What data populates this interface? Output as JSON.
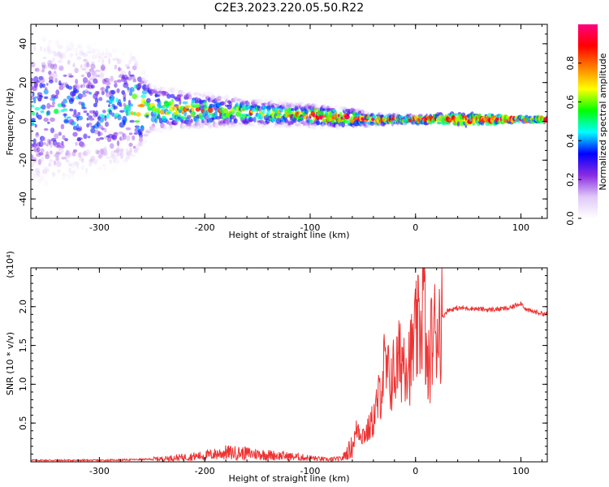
{
  "title": "C2E3.2023.220.05.50.R22",
  "chart_data": [
    {
      "type": "heatmap",
      "xlabel": "Height of straight line (km)",
      "ylabel": "Frequency (Hz)",
      "xlim": [
        -365,
        125
      ],
      "ylim": [
        -50,
        50
      ],
      "xticks": [
        -300,
        -200,
        -100,
        0,
        100
      ],
      "yticks": [
        -40,
        -20,
        0,
        20,
        40
      ],
      "colorbar": {
        "label": "Normalized spectral amplitude",
        "range": [
          0,
          1
        ],
        "ticks": [
          "0.0",
          "0.2",
          "0.4",
          "0.6",
          "0.8"
        ],
        "colors": [
          "#ffffff",
          "#e0c8f8",
          "#8a2be2",
          "#0000ff",
          "#00ffff",
          "#00ff00",
          "#ffff00",
          "#ff8000",
          "#ff0000",
          "#ff0080"
        ]
      },
      "band_center_hz": [
        [
          -360,
          5
        ],
        [
          -300,
          6
        ],
        [
          -260,
          7
        ],
        [
          -220,
          6
        ],
        [
          -180,
          5
        ],
        [
          -140,
          4
        ],
        [
          -100,
          3
        ],
        [
          -70,
          2
        ],
        [
          -40,
          1
        ],
        [
          -20,
          1
        ],
        [
          0,
          1
        ],
        [
          50,
          1
        ],
        [
          100,
          1
        ],
        [
          125,
          1
        ]
      ],
      "band_halfwidth_hz": [
        [
          -360,
          40
        ],
        [
          -270,
          30
        ],
        [
          -250,
          12
        ],
        [
          -200,
          9
        ],
        [
          -150,
          7
        ],
        [
          -100,
          6
        ],
        [
          -60,
          5
        ],
        [
          -40,
          3
        ],
        [
          0,
          2
        ],
        [
          50,
          3
        ],
        [
          100,
          1
        ],
        [
          125,
          1
        ]
      ]
    },
    {
      "type": "line",
      "xlabel": "Height of straight line (km)",
      "ylabel": "SNR (10 * v/v)",
      "yscale_label": "(x10⁴)",
      "xlim": [
        -365,
        125
      ],
      "ylim": [
        0,
        2.5
      ],
      "xticks": [
        -300,
        -200,
        -100,
        0,
        100
      ],
      "yticks": [
        "0.5",
        "1.0",
        "1.5",
        "2.0"
      ],
      "series": [
        {
          "color": "#ee3333",
          "x": [
            -365,
            -300,
            -260,
            -240,
            -220,
            -200,
            -180,
            -160,
            -140,
            -120,
            -100,
            -85,
            -70,
            -60,
            -55,
            -50,
            -45,
            -40,
            -35,
            -30,
            -25,
            -20,
            -15,
            -10,
            -5,
            0,
            5,
            8,
            10,
            12,
            15,
            20,
            25,
            30,
            40,
            50,
            60,
            70,
            80,
            90,
            95,
            100,
            105,
            110,
            125
          ],
          "y": [
            0.02,
            0.02,
            0.03,
            0.04,
            0.06,
            0.08,
            0.12,
            0.11,
            0.09,
            0.07,
            0.05,
            0.03,
            0.04,
            0.2,
            0.45,
            0.35,
            0.4,
            0.55,
            0.8,
            1.2,
            1.05,
            1.15,
            1.3,
            1.4,
            1.3,
            1.6,
            1.75,
            2.2,
            1.3,
            1.1,
            1.55,
            1.75,
            1.85,
            1.95,
            1.98,
            1.98,
            1.97,
            1.96,
            1.97,
            1.98,
            2.02,
            2.05,
            1.96,
            1.94,
            1.9
          ]
        }
      ]
    }
  ]
}
